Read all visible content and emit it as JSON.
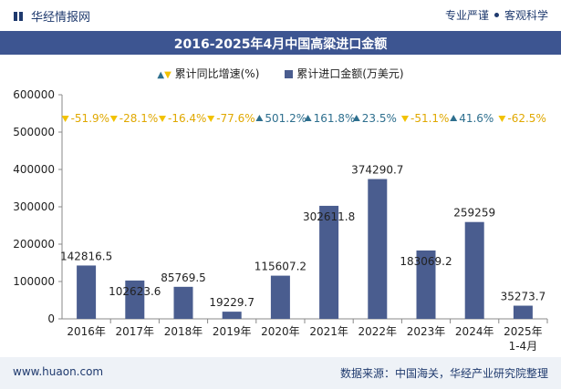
{
  "header": {
    "brand": "华经情报网",
    "tag1": "专业严谨",
    "tag2": "客观科学"
  },
  "chart_title": "2016-2025年4月中国高粱进口金额",
  "legend": {
    "growth_label": "累计同比增速(%)",
    "amount_label": "累计进口金额(万美元)"
  },
  "footer": {
    "url": "www.huaon.com",
    "source": "数据来源：中国海关，华经产业研究院整理"
  },
  "colors": {
    "bar": "#4a5d8f",
    "up": "#2e6f8e",
    "down": "#f2c200",
    "title_bg": "#3d5591"
  },
  "chart_data": {
    "type": "bar",
    "title": "2016-2025年4月中国高粱进口金额",
    "categories": [
      "2016年",
      "2017年",
      "2018年",
      "2019年",
      "2020年",
      "2021年",
      "2022年",
      "2023年",
      "2024年",
      "2025年\n1-4月"
    ],
    "series": [
      {
        "name": "累计进口金额(万美元)",
        "values": [
          142816.5,
          102623.6,
          85769.5,
          19229.7,
          115607.2,
          302611.8,
          374290.7,
          183069.2,
          259259,
          35273.7
        ],
        "labels": [
          "142816.5",
          "102623.6",
          "85769.5",
          "19229.7",
          "115607.2",
          "302611.8",
          "374290.7",
          "183069.2",
          "259259",
          "35273.7"
        ]
      },
      {
        "name": "累计同比增速(%)",
        "values": [
          -51.9,
          -28.1,
          -16.4,
          -77.6,
          501.2,
          161.8,
          23.5,
          -51.1,
          41.6,
          -62.5
        ],
        "labels": [
          "-51.9%",
          "-28.1%",
          "-16.4%",
          "-77.6%",
          "501.2%",
          "161.8%",
          "23.5%",
          "-51.1%",
          "41.6%",
          "-62.5%"
        ]
      }
    ],
    "ylim": [
      0,
      600000
    ],
    "yticks": [
      "0",
      "100000",
      "200000",
      "300000",
      "400000",
      "500000",
      "600000"
    ],
    "xlabel": "",
    "ylabel": ""
  }
}
